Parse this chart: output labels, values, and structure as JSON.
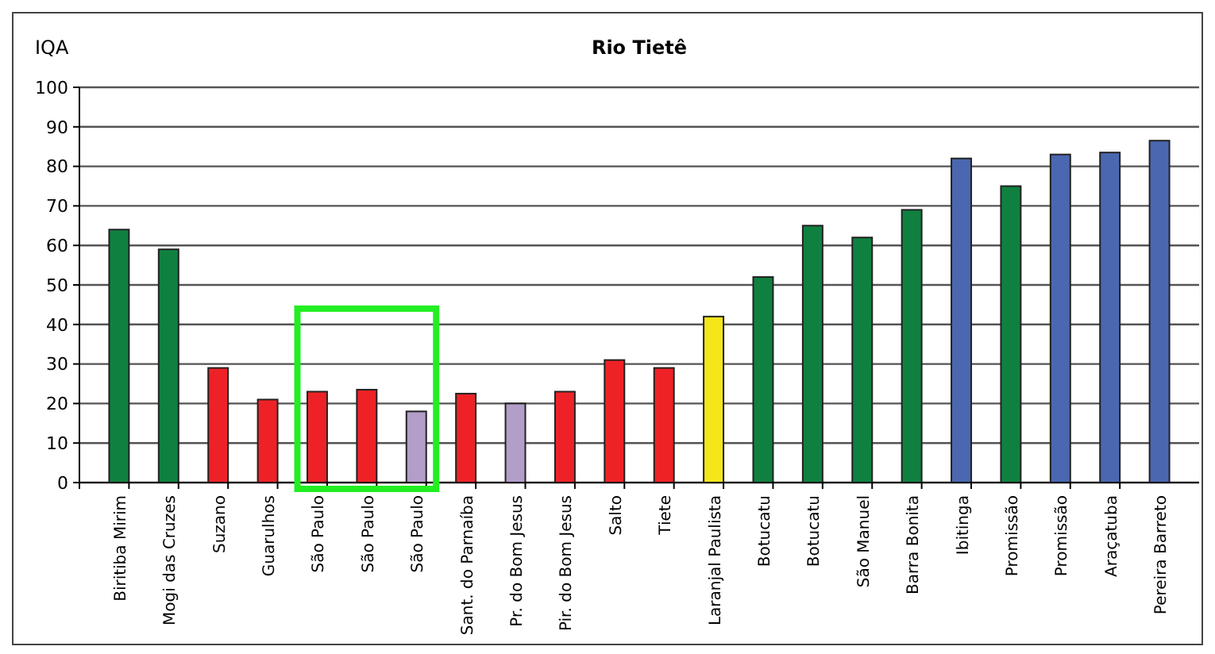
{
  "chart_data": {
    "type": "bar",
    "title": "Rio Tietê",
    "ylabel": "IQA",
    "categories": [
      "Biritiba Mirim",
      "Mogi das Cruzes",
      "Suzano",
      "Guarulhos",
      "São Paulo",
      "São Paulo",
      "São Paulo",
      "Sant. do Parnaíba",
      "Pr. do Bom Jesus",
      "Pir. do Bom Jesus",
      "Salto",
      "Tiete",
      "Laranjal Paulista",
      "Botucatu",
      "Botucatu",
      "São Manuel",
      "Barra Bonita",
      "Ibitinga",
      "Promissão",
      "Promissão",
      "Araçatuba",
      "Pereira Barreto"
    ],
    "values": [
      64,
      59,
      29,
      21,
      23,
      23.5,
      18,
      22.5,
      20,
      23,
      31,
      29,
      42,
      52,
      65,
      62,
      69,
      82,
      75,
      83,
      83.5,
      86.5
    ],
    "colors": [
      "#108040",
      "#108040",
      "#ee2226",
      "#ee2226",
      "#ee2226",
      "#ee2226",
      "#b39dc9",
      "#ee2226",
      "#b39dc9",
      "#ee2226",
      "#ee2226",
      "#ee2226",
      "#f5e61a",
      "#108040",
      "#108040",
      "#108040",
      "#108040",
      "#4a67b0",
      "#108040",
      "#4a67b0",
      "#4a67b0",
      "#4a67b0"
    ],
    "ylim": [
      0,
      100
    ],
    "yticks": [
      0,
      10,
      20,
      30,
      40,
      50,
      60,
      70,
      80,
      90,
      100
    ],
    "grid": "y"
  }
}
